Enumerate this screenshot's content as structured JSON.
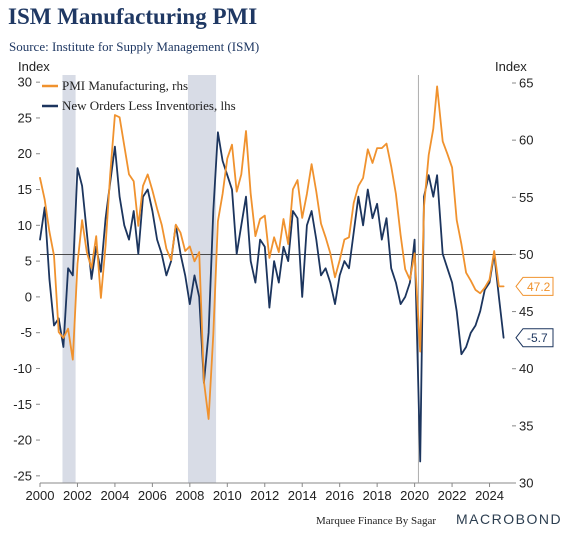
{
  "title": "ISM Manufacturing PMI",
  "subtitle": "Source: Institute for Supply Management (ISM)",
  "footer": {
    "credit": "Marquee Finance By Sagar",
    "logo": "MACROBOND"
  },
  "colors": {
    "pmi": "#f0922e",
    "new_orders": "#1c355e",
    "recession": "#d8dce6",
    "title": "#1f3863",
    "grid": "#cccccc"
  },
  "chart_data": {
    "type": "line",
    "left_axis": {
      "label": "Index",
      "range": [
        -26,
        31
      ],
      "ticks": [
        -25,
        -20,
        -15,
        -10,
        -5,
        0,
        5,
        10,
        15,
        20,
        25,
        30
      ]
    },
    "right_axis": {
      "label": "Index",
      "range": [
        30,
        65.7
      ],
      "ticks": [
        30,
        35,
        40,
        45,
        50,
        55,
        60,
        65
      ]
    },
    "x_axis": {
      "range": [
        2000,
        2025.2
      ],
      "ticks": [
        2000,
        2002,
        2004,
        2006,
        2008,
        2010,
        2012,
        2014,
        2016,
        2018,
        2020,
        2022,
        2024
      ]
    },
    "reference_line": {
      "axis": "right",
      "value": 50
    },
    "vertical_line": {
      "x": 2020.2
    },
    "recessions": [
      [
        2001.2,
        2001.9
      ],
      [
        2007.9,
        2009.4
      ]
    ],
    "legend_placement": "top-left",
    "series": [
      {
        "name": "PMI Manufacturing, rhs",
        "axis": "right",
        "points": [
          [
            2000.0,
            56.7
          ],
          [
            2000.25,
            54.8
          ],
          [
            2000.5,
            52.0
          ],
          [
            2000.75,
            49.9
          ],
          [
            2001.0,
            43.2
          ],
          [
            2001.25,
            42.7
          ],
          [
            2001.5,
            43.5
          ],
          [
            2001.75,
            40.8
          ],
          [
            2002.0,
            49.2
          ],
          [
            2002.25,
            53.0
          ],
          [
            2002.5,
            50.2
          ],
          [
            2002.75,
            48.8
          ],
          [
            2003.0,
            51.6
          ],
          [
            2003.25,
            46.2
          ],
          [
            2003.5,
            50.8
          ],
          [
            2003.75,
            57.0
          ],
          [
            2004.0,
            62.2
          ],
          [
            2004.25,
            62.0
          ],
          [
            2004.5,
            59.5
          ],
          [
            2004.75,
            57.0
          ],
          [
            2005.0,
            56.4
          ],
          [
            2005.25,
            52.5
          ],
          [
            2005.5,
            56.0
          ],
          [
            2005.75,
            57.0
          ],
          [
            2006.0,
            55.6
          ],
          [
            2006.25,
            54.0
          ],
          [
            2006.5,
            52.6
          ],
          [
            2006.75,
            50.5
          ],
          [
            2007.0,
            49.5
          ],
          [
            2007.25,
            52.6
          ],
          [
            2007.5,
            51.9
          ],
          [
            2007.75,
            50.3
          ],
          [
            2008.0,
            50.7
          ],
          [
            2008.25,
            49.4
          ],
          [
            2008.5,
            50.2
          ],
          [
            2008.75,
            38.9
          ],
          [
            2009.0,
            35.6
          ],
          [
            2009.25,
            43.0
          ],
          [
            2009.5,
            52.9
          ],
          [
            2009.75,
            55.3
          ],
          [
            2010.0,
            58.4
          ],
          [
            2010.25,
            59.6
          ],
          [
            2010.5,
            55.5
          ],
          [
            2010.75,
            57.0
          ],
          [
            2011.0,
            60.8
          ],
          [
            2011.25,
            55.3
          ],
          [
            2011.5,
            51.6
          ],
          [
            2011.75,
            53.1
          ],
          [
            2012.0,
            53.4
          ],
          [
            2012.25,
            49.7
          ],
          [
            2012.5,
            51.5
          ],
          [
            2012.75,
            50.2
          ],
          [
            2013.0,
            53.1
          ],
          [
            2013.25,
            50.9
          ],
          [
            2013.5,
            55.7
          ],
          [
            2013.75,
            56.5
          ],
          [
            2014.0,
            53.2
          ],
          [
            2014.25,
            55.3
          ],
          [
            2014.5,
            57.9
          ],
          [
            2014.75,
            55.5
          ],
          [
            2015.0,
            52.7
          ],
          [
            2015.25,
            51.5
          ],
          [
            2015.5,
            50.1
          ],
          [
            2015.75,
            48.0
          ],
          [
            2016.0,
            49.5
          ],
          [
            2016.25,
            51.3
          ],
          [
            2016.5,
            51.5
          ],
          [
            2016.75,
            54.5
          ],
          [
            2017.0,
            56.0
          ],
          [
            2017.25,
            56.7
          ],
          [
            2017.5,
            59.2
          ],
          [
            2017.75,
            58.0
          ],
          [
            2018.0,
            59.3
          ],
          [
            2018.25,
            59.3
          ],
          [
            2018.5,
            59.7
          ],
          [
            2018.75,
            57.7
          ],
          [
            2019.0,
            55.3
          ],
          [
            2019.25,
            51.7
          ],
          [
            2019.5,
            48.7
          ],
          [
            2019.75,
            47.8
          ],
          [
            2020.0,
            50.1
          ],
          [
            2020.3,
            41.5
          ],
          [
            2020.5,
            54.2
          ],
          [
            2020.75,
            58.7
          ],
          [
            2021.0,
            61.0
          ],
          [
            2021.2,
            64.7
          ],
          [
            2021.5,
            59.9
          ],
          [
            2021.75,
            58.8
          ],
          [
            2022.0,
            57.6
          ],
          [
            2022.25,
            53.0
          ],
          [
            2022.5,
            50.9
          ],
          [
            2022.75,
            48.4
          ],
          [
            2023.0,
            47.7
          ],
          [
            2023.25,
            46.9
          ],
          [
            2023.5,
            46.6
          ],
          [
            2023.75,
            47.1
          ],
          [
            2024.0,
            47.8
          ],
          [
            2024.25,
            50.3
          ],
          [
            2024.5,
            47.2
          ],
          [
            2024.75,
            47.2
          ]
        ]
      },
      {
        "name": "New Orders Less Inventories, lhs",
        "axis": "left",
        "points": [
          [
            2000.0,
            8.0
          ],
          [
            2000.25,
            12.5
          ],
          [
            2000.5,
            2.5
          ],
          [
            2000.75,
            -4.0
          ],
          [
            2001.0,
            -3.0
          ],
          [
            2001.25,
            -7.0
          ],
          [
            2001.5,
            4.0
          ],
          [
            2001.75,
            3.0
          ],
          [
            2002.0,
            18.0
          ],
          [
            2002.25,
            15.5
          ],
          [
            2002.5,
            9.0
          ],
          [
            2002.75,
            2.5
          ],
          [
            2003.0,
            7.0
          ],
          [
            2003.25,
            3.5
          ],
          [
            2003.5,
            11.0
          ],
          [
            2003.75,
            16.0
          ],
          [
            2004.0,
            21.0
          ],
          [
            2004.25,
            14.0
          ],
          [
            2004.5,
            10.0
          ],
          [
            2004.75,
            8.0
          ],
          [
            2005.0,
            12.0
          ],
          [
            2005.25,
            6.0
          ],
          [
            2005.5,
            14.0
          ],
          [
            2005.75,
            15.0
          ],
          [
            2006.0,
            12.0
          ],
          [
            2006.25,
            8.0
          ],
          [
            2006.5,
            6.0
          ],
          [
            2006.75,
            3.0
          ],
          [
            2007.0,
            5.0
          ],
          [
            2007.25,
            10.0
          ],
          [
            2007.5,
            6.0
          ],
          [
            2007.75,
            3.0
          ],
          [
            2008.0,
            -1.0
          ],
          [
            2008.25,
            3.0
          ],
          [
            2008.5,
            0.0
          ],
          [
            2008.75,
            -12.0
          ],
          [
            2009.0,
            -5.0
          ],
          [
            2009.25,
            12.0
          ],
          [
            2009.5,
            23.0
          ],
          [
            2009.75,
            19.0
          ],
          [
            2010.0,
            17.0
          ],
          [
            2010.25,
            15.0
          ],
          [
            2010.5,
            6.0
          ],
          [
            2010.75,
            10.0
          ],
          [
            2011.0,
            14.0
          ],
          [
            2011.25,
            5.0
          ],
          [
            2011.5,
            2.0
          ],
          [
            2011.75,
            8.0
          ],
          [
            2012.0,
            7.0
          ],
          [
            2012.25,
            -1.5
          ],
          [
            2012.5,
            5.0
          ],
          [
            2012.75,
            2.0
          ],
          [
            2013.0,
            7.0
          ],
          [
            2013.25,
            5.0
          ],
          [
            2013.5,
            12.0
          ],
          [
            2013.75,
            11.0
          ],
          [
            2014.0,
            0.0
          ],
          [
            2014.25,
            10.0
          ],
          [
            2014.5,
            12.0
          ],
          [
            2014.75,
            8.0
          ],
          [
            2015.0,
            3.0
          ],
          [
            2015.25,
            4.0
          ],
          [
            2015.5,
            2.0
          ],
          [
            2015.75,
            -1.0
          ],
          [
            2016.0,
            3.0
          ],
          [
            2016.25,
            5.0
          ],
          [
            2016.5,
            4.0
          ],
          [
            2016.75,
            9.0
          ],
          [
            2017.0,
            14.0
          ],
          [
            2017.25,
            10.0
          ],
          [
            2017.5,
            15.0
          ],
          [
            2017.75,
            11.0
          ],
          [
            2018.0,
            13.0
          ],
          [
            2018.25,
            8.0
          ],
          [
            2018.5,
            11.0
          ],
          [
            2018.75,
            4.0
          ],
          [
            2019.0,
            2.0
          ],
          [
            2019.25,
            -1.0
          ],
          [
            2019.5,
            0.0
          ],
          [
            2019.75,
            2.0
          ],
          [
            2020.0,
            8.0
          ],
          [
            2020.3,
            -23.0
          ],
          [
            2020.5,
            14.0
          ],
          [
            2020.75,
            17.0
          ],
          [
            2021.0,
            14.0
          ],
          [
            2021.2,
            17.0
          ],
          [
            2021.5,
            6.0
          ],
          [
            2021.75,
            4.0
          ],
          [
            2022.0,
            2.0
          ],
          [
            2022.25,
            -2.0
          ],
          [
            2022.5,
            -8.0
          ],
          [
            2022.75,
            -7.0
          ],
          [
            2023.0,
            -5.0
          ],
          [
            2023.25,
            -4.0
          ],
          [
            2023.5,
            -2.0
          ],
          [
            2023.75,
            1.0
          ],
          [
            2024.0,
            2.0
          ],
          [
            2024.25,
            6.0
          ],
          [
            2024.5,
            0.0
          ],
          [
            2024.75,
            -5.7
          ]
        ]
      }
    ],
    "end_labels": [
      {
        "series": "PMI Manufacturing, rhs",
        "text": "47.2",
        "value": 47.2,
        "axis": "right"
      },
      {
        "series": "New Orders Less Inventories, lhs",
        "text": "-5.7",
        "value": -5.7,
        "axis": "left"
      }
    ]
  }
}
